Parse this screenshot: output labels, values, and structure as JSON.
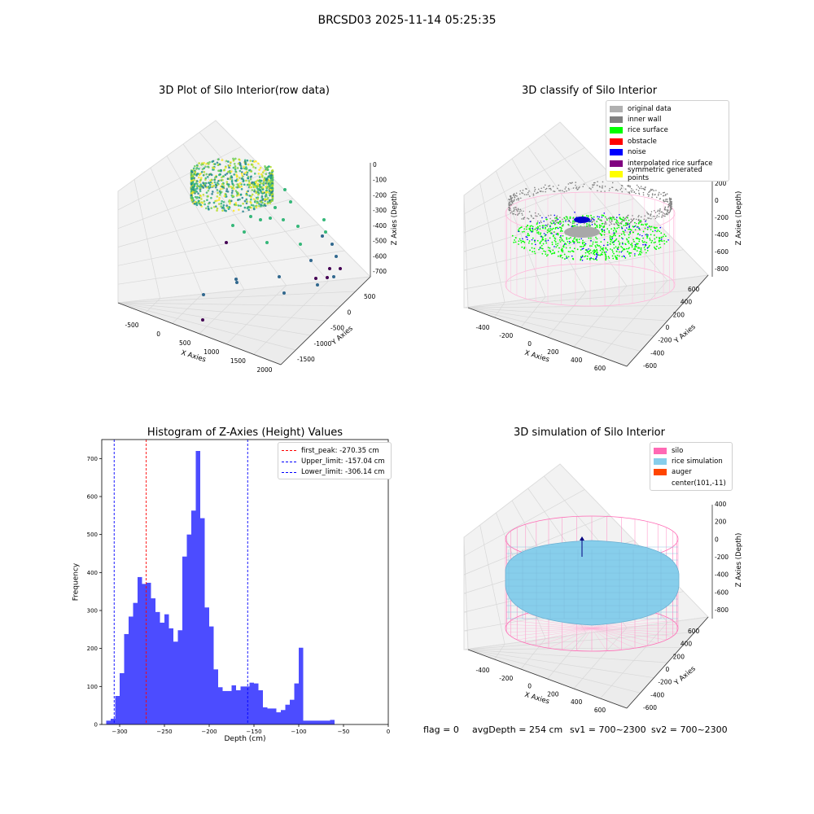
{
  "suptitle": "BRCSD03 2025-11-14 05:25:35",
  "panels": {
    "raw": {
      "title": "3D Plot of Silo Interior(row data)",
      "x_label": "X Axies",
      "y_label": "Y Axies",
      "z_label": "Z Axies (Depth)",
      "x_ticks": [
        "-500",
        "0",
        "500",
        "1000",
        "1500",
        "2000"
      ],
      "y_ticks": [
        "500",
        "0",
        "-500",
        "-1000",
        "-1500"
      ],
      "z_ticks": [
        "0",
        "-100",
        "-200",
        "-300",
        "-400",
        "-500",
        "-600",
        "-700"
      ]
    },
    "classify": {
      "title": "3D classify of Silo Interior",
      "x_label": "X Axies",
      "y_label": "Y Axies",
      "z_label": "Z Axies (Depth)",
      "x_ticks": [
        "-400",
        "-200",
        "0",
        "200",
        "400",
        "600"
      ],
      "y_ticks": [
        "600",
        "400",
        "200",
        "0",
        "-200",
        "-400",
        "-600"
      ],
      "z_ticks": [
        "200",
        "0",
        "-200",
        "-400",
        "-600",
        "-800"
      ],
      "legend": [
        {
          "label": "original data",
          "color": "#b0b0b0"
        },
        {
          "label": "inner wall",
          "color": "#808080"
        },
        {
          "label": "rice surface",
          "color": "#00ff00"
        },
        {
          "label": "obstacle",
          "color": "#ff0000"
        },
        {
          "label": "noise",
          "color": "#0000ff"
        },
        {
          "label": "interpolated rice surface",
          "color": "#800080"
        },
        {
          "label": "symmetric generated points",
          "color": "#ffff00"
        }
      ]
    },
    "simulation": {
      "title": "3D simulation of Silo Interior",
      "x_label": "X Axies",
      "y_label": "Y Axies",
      "z_label": "Z Axies (Depth)",
      "x_ticks": [
        "-400",
        "-200",
        "0",
        "200",
        "400",
        "600"
      ],
      "y_ticks": [
        "600",
        "400",
        "200",
        "0",
        "-200",
        "-400",
        "-600"
      ],
      "z_ticks": [
        "400",
        "200",
        "0",
        "-200",
        "-400",
        "-600",
        "-800"
      ],
      "legend": [
        {
          "label": "silo",
          "color": "#ff69b4"
        },
        {
          "label": "rice simulation",
          "color": "#87ceeb"
        },
        {
          "label": "auger",
          "color": "#ff4500"
        },
        {
          "label": "center(101,-11)",
          "color": ""
        }
      ]
    }
  },
  "status": {
    "flag": "flag = 0",
    "avg_depth": "avgDepth = 254 cm",
    "sv1": "sv1 = 700~2300",
    "sv2": "sv2 = 700~2300"
  },
  "chart_data": {
    "type": "bar",
    "title": "Histogram of Z-Axies (Height) Values",
    "xlabel": "Depth (cm)",
    "ylabel": "Frequency",
    "xlim": [
      -320,
      0
    ],
    "ylim": [
      0,
      750
    ],
    "x_ticks": [
      -300,
      -250,
      -200,
      -150,
      -100,
      -50,
      0
    ],
    "y_ticks": [
      0,
      100,
      200,
      300,
      400,
      500,
      600,
      700
    ],
    "bar_color": "#4c4cff",
    "bin_width": 5,
    "bin_starts": [
      -315,
      -310,
      -305,
      -300,
      -295,
      -290,
      -285,
      -280,
      -275,
      -270,
      -265,
      -260,
      -255,
      -250,
      -245,
      -240,
      -235,
      -230,
      -225,
      -220,
      -215,
      -210,
      -205,
      -200,
      -195,
      -190,
      -185,
      -180,
      -175,
      -170,
      -165,
      -160,
      -155,
      -150,
      -145,
      -140,
      -135,
      -130,
      -125,
      -120,
      -115,
      -110,
      -105,
      -100,
      -95,
      -90,
      -85,
      -80,
      -75,
      -70,
      -65,
      -60,
      -55,
      -50,
      -45,
      -40,
      -35,
      -30,
      -25,
      -20,
      -15
    ],
    "values": [
      10,
      15,
      75,
      135,
      238,
      284,
      320,
      388,
      370,
      373,
      332,
      296,
      268,
      290,
      253,
      218,
      248,
      442,
      500,
      563,
      720,
      543,
      308,
      258,
      145,
      98,
      88,
      88,
      103,
      90,
      100,
      100,
      110,
      108,
      90,
      45,
      42,
      42,
      32,
      38,
      52,
      65,
      108,
      202,
      10,
      10,
      10,
      10,
      10,
      10,
      12,
      0,
      0,
      0,
      0,
      0,
      0,
      0,
      0,
      0,
      0
    ],
    "vlines": [
      {
        "label": "first_peak: -270.35 cm",
        "x": -270.35,
        "color": "#ff0000"
      },
      {
        "label": "Upper_limit: -157.04 cm",
        "x": -157.04,
        "color": "#0000ff"
      },
      {
        "label": "Lower_limit: -306.14 cm",
        "x": -306.14,
        "color": "#0000ff"
      }
    ]
  }
}
